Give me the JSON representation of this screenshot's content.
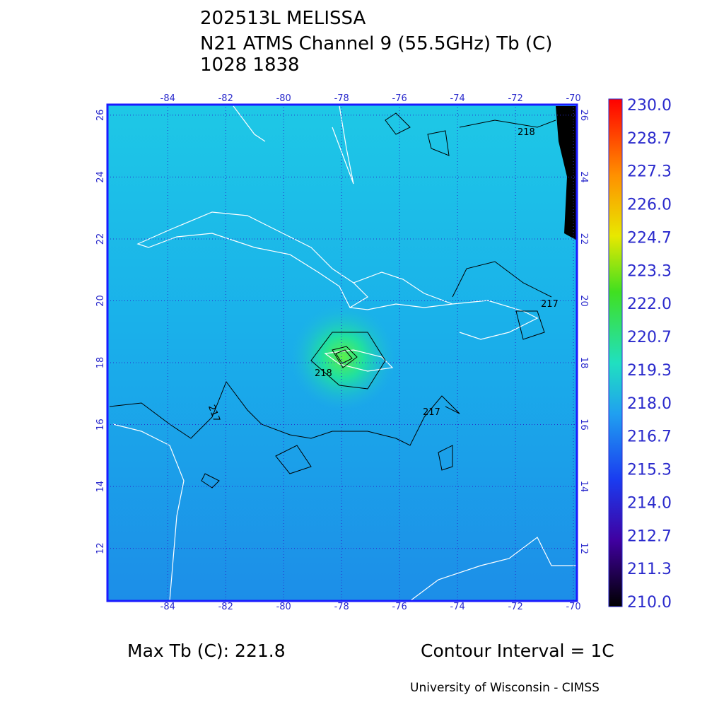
{
  "header": {
    "lines": [
      "202513L MELISSA",
      "N21 ATMS Channel 9 (55.5GHz) Tb (C)",
      "1028 1838"
    ]
  },
  "map": {
    "lon_range": [
      -86.08,
      -69.88
    ],
    "lat_range": [
      10.3,
      26.34
    ],
    "lon_ticks": [
      -84,
      -82,
      -80,
      -78,
      -76,
      -74,
      -72,
      -70
    ],
    "lat_ticks": [
      12,
      14,
      16,
      18,
      20,
      22,
      24,
      26
    ],
    "contour_labels": [
      "218",
      "217",
      "218",
      "217",
      "217"
    ]
  },
  "colorbar": {
    "labels": [
      "230.0",
      "228.7",
      "227.3",
      "226.0",
      "224.7",
      "223.3",
      "222.0",
      "220.7",
      "219.3",
      "218.0",
      "216.7",
      "215.3",
      "214.0",
      "212.7",
      "211.3",
      "210.0"
    ]
  },
  "footer": {
    "max_tb": "Max Tb (C): 221.8",
    "contour_interval": "Contour Interval = 1C",
    "credit": "University of Wisconsin - CIMSS"
  }
}
